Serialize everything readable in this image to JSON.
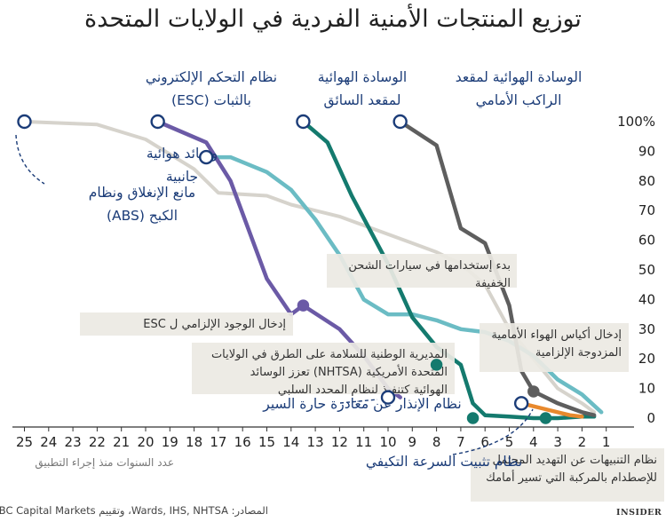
{
  "page": {
    "title": "توزيع المنتجات الأمنية الفردية في الولايات المتحدة",
    "source": "المصادر: Wards, IHS, NHTSA، وتقييم RBC Capital Markets",
    "brand": "INSIDER"
  },
  "colors": {
    "esc": "#6b5aa6",
    "side_airbags": "#6bbcc4",
    "driver_airbag": "#147a6e",
    "passenger_airbag": "#5e5e5e",
    "abs": "#d6d3cc",
    "highlight": "#1b3c78",
    "orange": "#e8892d",
    "callout_box": "#ece9e3"
  },
  "chart_data": {
    "type": "line",
    "title": "توزيع المنتجات الأمنية الفردية في الولايات المتحدة",
    "xlabel": "عدد السنوات منذ إجراء التطبيق",
    "ylabel": "",
    "x_ticks": [
      25,
      24,
      23,
      22,
      21,
      20,
      19,
      18,
      17,
      16,
      15,
      14,
      13,
      12,
      11,
      10,
      9,
      8,
      7,
      6,
      5,
      4,
      3,
      2,
      1
    ],
    "y_ticks": [
      0,
      10,
      20,
      30,
      40,
      50,
      60,
      70,
      80,
      90,
      100
    ],
    "y_top_label": "100%",
    "xlim": [
      26,
      1
    ],
    "ylim": [
      0,
      100
    ],
    "series": [
      {
        "key": "abs",
        "name": "مانع الإنغلاق ونظام الكبح (ABS)",
        "color": "#d6d3cc",
        "x": [
          25,
          22,
          20,
          18,
          17,
          15,
          14,
          13,
          12,
          11,
          10,
          9,
          8,
          7,
          6,
          5,
          4,
          3,
          2,
          1.5
        ],
        "y": [
          100,
          99,
          94,
          84,
          76,
          75,
          72,
          70,
          68,
          65,
          62,
          59,
          56,
          52,
          45,
          30,
          20,
          10,
          5,
          2
        ]
      },
      {
        "key": "side",
        "name": "وسائد هوائية جانبية",
        "color": "#6bbcc4",
        "x": [
          17.5,
          16.5,
          15,
          14,
          13,
          12,
          11,
          10,
          9,
          8,
          7,
          6,
          5,
          4,
          3,
          2,
          1.2
        ],
        "y": [
          88,
          88,
          83,
          77,
          67,
          55,
          40,
          35,
          35,
          33,
          30,
          29,
          26,
          21,
          13,
          8,
          2
        ]
      },
      {
        "key": "esc",
        "name": "نظام التحكم الإلكتروني بالثبات (ESC)",
        "color": "#6b5aa6",
        "x": [
          19.5,
          17.5,
          16.5,
          15,
          14,
          13.5,
          12,
          11,
          10,
          9.5
        ],
        "y": [
          100,
          93,
          80,
          47,
          35,
          38,
          30,
          21,
          10,
          7
        ]
      },
      {
        "key": "driver",
        "name": "الوسادة الهوائية لمقعد السائق",
        "color": "#147a6e",
        "x": [
          13.5,
          12.5,
          11.5,
          10,
          9,
          8,
          7,
          6.5,
          6,
          5,
          4,
          3,
          2,
          1.5
        ],
        "y": [
          100,
          93,
          75,
          52,
          34,
          24,
          18,
          5,
          1,
          0.5,
          0,
          0,
          0.5,
          0.5
        ]
      },
      {
        "key": "passenger",
        "name": "الوسادة الهوائية لمقعد الراكب الأمامي",
        "color": "#5e5e5e",
        "x": [
          9.5,
          8,
          7,
          6,
          5,
          4.5,
          4,
          3,
          2,
          1.5
        ],
        "y": [
          100,
          92,
          64,
          59,
          38,
          16,
          9,
          5,
          2,
          1
        ]
      },
      {
        "key": "fcw",
        "name": "نظام التنبيهات عن التهديد المحتمل للإصطدام بالمركبة التي تسير أمامك",
        "color": "#e8892d",
        "x": [
          4.5,
          3.5,
          2.5,
          2
        ],
        "y": [
          5,
          3,
          1,
          0.5
        ]
      }
    ],
    "markers": [
      {
        "x": 25,
        "y": 100,
        "color": "#1b3c78",
        "fill": "#ffffff"
      },
      {
        "x": 19.5,
        "y": 100,
        "color": "#1b3c78",
        "fill": "#ffffff"
      },
      {
        "x": 17.5,
        "y": 88,
        "color": "#1b3c78",
        "fill": "#ffffff"
      },
      {
        "x": 13.5,
        "y": 100,
        "color": "#1b3c78",
        "fill": "#ffffff"
      },
      {
        "x": 9.5,
        "y": 100,
        "color": "#1b3c78",
        "fill": "#ffffff"
      },
      {
        "x": 13.5,
        "y": 38,
        "color": "#6b5aa6",
        "fill": "#6b5aa6"
      },
      {
        "x": 8,
        "y": 18,
        "color": "#147a6e",
        "fill": "#147a6e"
      },
      {
        "x": 6.5,
        "y": 0,
        "color": "#147a6e",
        "fill": "#147a6e"
      },
      {
        "x": 3.5,
        "y": 0,
        "color": "#147a6e",
        "fill": "#147a6e"
      },
      {
        "x": 4,
        "y": 9,
        "color": "#5e5e5e",
        "fill": "#5e5e5e"
      },
      {
        "x": 10,
        "y": 7,
        "color": "#1b3c78",
        "fill": "#ffffff"
      },
      {
        "x": 4.5,
        "y": 5,
        "color": "#1b3c78",
        "fill": "#ffffff"
      }
    ],
    "labels": [
      {
        "lines": [
          "الوسادة الهوائية لمقعد",
          "الراكب الأمامي"
        ],
        "color": "#1b3c78"
      },
      {
        "lines": [
          "الوسادة الهوائية",
          "لمقعد السائق"
        ],
        "color": "#1b3c78"
      },
      {
        "lines": [
          "نظام التحكم الإلكتروني",
          "بالثبات (ESC)"
        ],
        "color": "#1b3c78"
      },
      {
        "lines": [
          "وسائد هوائية",
          "جانبية"
        ],
        "color": "#1b3c78"
      },
      {
        "lines": [
          "مانع  الإنغلاق ونظام",
          "الكبح (ABS)"
        ],
        "color": "#1b3c78"
      },
      {
        "lines": [
          "نظام الإنذار عن مغادرة حارة السير"
        ],
        "color": "#1b3c78"
      },
      {
        "lines": [
          "نظام تثبيت السرعة التكيفي"
        ],
        "color": "#1b3c78"
      }
    ],
    "callouts": [
      {
        "lines": [
          "بدء  إستخدامها في سيارات الشحن",
          "الخفيفة"
        ]
      },
      {
        "lines": [
          "إدخال الوجود الإلزامي  ل ESC"
        ]
      },
      {
        "lines": [
          "المديرية الوطنية للسلامة على الطرق في الولايات",
          "المتحدة الأمريكية (NHTSA) تعزز الوسائد",
          "الهوائية كتنفيذ لنظام المحدد السلبي"
        ]
      },
      {
        "lines": [
          "إدخال أكياس الهواء الأمامية",
          "المزدوجة الإلزامية"
        ]
      },
      {
        "lines": [
          "نظام التنبيهات عن التهديد المحتمل",
          "للإصطدام بالمركبة التي تسير أمامك"
        ]
      }
    ],
    "grid": false,
    "legend": "none"
  }
}
